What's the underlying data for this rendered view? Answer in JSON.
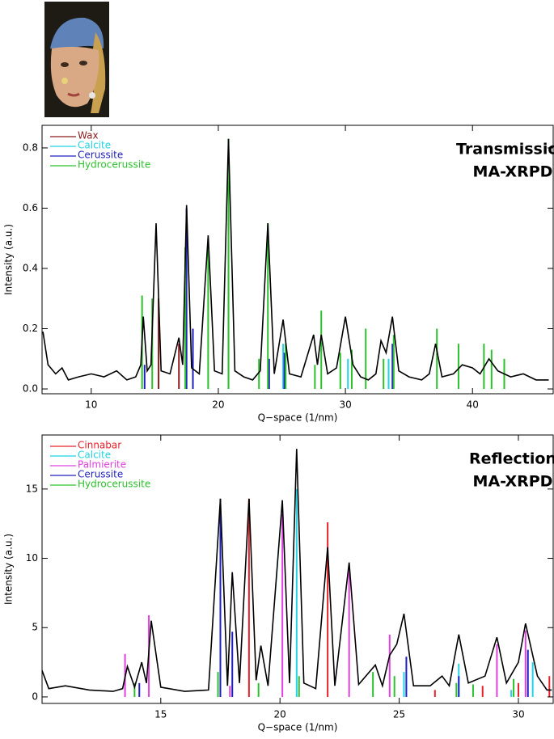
{
  "chart_data": [
    {
      "type": "line",
      "xlabel": "Q−space (1/nm)",
      "ylabel": "Intensity (a.u.)",
      "annotation": [
        "Transmission",
        "MA-XRPD"
      ],
      "xlim": [
        6.13,
        46.35
      ],
      "ylim": [
        -0.016,
        0.875
      ],
      "xticks": [
        10,
        20,
        30,
        40
      ],
      "yticks": [
        {
          "value": 0,
          "label": "0.0"
        },
        0.2,
        0.4,
        0.6,
        0.8
      ],
      "profile": {
        "color": "#000000",
        "x": [
          6.2,
          6.6,
          7.2,
          7.7,
          8.2,
          9,
          10,
          11,
          12,
          12.8,
          13.5,
          13.9,
          14.1,
          14.4,
          14.7,
          15.1,
          15.5,
          16.2,
          16.9,
          17.2,
          17.5,
          17.9,
          18.5,
          19.2,
          19.7,
          20.3,
          20.8,
          21.3,
          22,
          22.7,
          23.3,
          23.9,
          24.4,
          25.1,
          25.6,
          26.5,
          27.5,
          27.8,
          28.1,
          28.6,
          29.3,
          30.0,
          30.6,
          31.2,
          31.8,
          32.4,
          32.8,
          33.2,
          33.7,
          34.2,
          35,
          36,
          36.6,
          37.1,
          37.6,
          38.5,
          39.2,
          40,
          40.6,
          41.3,
          42,
          43,
          44,
          45,
          46
        ],
        "values": [
          0.19,
          0.08,
          0.05,
          0.07,
          0.03,
          0.04,
          0.05,
          0.04,
          0.06,
          0.03,
          0.04,
          0.08,
          0.24,
          0.06,
          0.08,
          0.55,
          0.06,
          0.05,
          0.17,
          0.08,
          0.61,
          0.07,
          0.05,
          0.51,
          0.06,
          0.05,
          0.83,
          0.06,
          0.04,
          0.03,
          0.06,
          0.55,
          0.05,
          0.23,
          0.05,
          0.04,
          0.18,
          0.08,
          0.18,
          0.05,
          0.07,
          0.24,
          0.08,
          0.04,
          0.03,
          0.05,
          0.16,
          0.12,
          0.24,
          0.06,
          0.04,
          0.03,
          0.05,
          0.15,
          0.04,
          0.05,
          0.08,
          0.07,
          0.05,
          0.1,
          0.06,
          0.04,
          0.05,
          0.03,
          0.03
        ]
      },
      "series": [
        {
          "name": "Wax",
          "color": "#8b1a1a",
          "x": [
            15.3,
            16.9
          ],
          "values": [
            0.3,
            0.15
          ]
        },
        {
          "name": "Calcite",
          "color": "#22d3e6",
          "x": [
            20.8,
            25.1,
            30.2,
            33.4
          ],
          "values": [
            0.83,
            0.15,
            0.1,
            0.1
          ]
        },
        {
          "name": "Cerussite",
          "color": "#1f1fbf",
          "x": [
            14.2,
            17.5,
            18.0,
            20.8,
            24.0,
            25.2,
            33.7
          ],
          "values": [
            0.08,
            0.6,
            0.2,
            0.8,
            0.1,
            0.12,
            0.15
          ]
        },
        {
          "name": "Hydrocerussite",
          "color": "#2cc12c",
          "x": [
            14.0,
            14.8,
            17.4,
            19.2,
            20.8,
            23.2,
            23.9,
            25.3,
            27.6,
            28.1,
            29.6,
            30.5,
            31.6,
            33.0,
            33.8,
            37.2,
            38.9,
            40.9,
            41.5,
            42.5
          ],
          "values": [
            0.31,
            0.3,
            0.47,
            0.5,
            0.83,
            0.1,
            0.55,
            0.15,
            0.08,
            0.26,
            0.12,
            0.13,
            0.2,
            0.1,
            0.18,
            0.2,
            0.15,
            0.15,
            0.13,
            0.1
          ]
        }
      ]
    },
    {
      "type": "line",
      "xlabel": "Q−space (1/nm)",
      "ylabel": "Intensity (a.u.)",
      "annotation": [
        "Reflection",
        "MA-XRPD"
      ],
      "xlim": [
        10.02,
        31.46
      ],
      "ylim": [
        -0.47,
        18.9
      ],
      "xticks": [
        15,
        20,
        25,
        30
      ],
      "yticks": [
        0,
        5,
        10,
        15
      ],
      "profile": {
        "color": "#000000",
        "x": [
          10.0,
          10.3,
          11,
          12,
          13,
          13.4,
          13.6,
          13.9,
          14.2,
          14.4,
          14.6,
          15,
          16,
          17,
          17.5,
          17.8,
          18.0,
          18.3,
          18.7,
          19.0,
          19.2,
          19.5,
          20.1,
          20.4,
          20.7,
          21,
          21.5,
          22.0,
          22.3,
          22.9,
          23.3,
          24,
          24.3,
          24.6,
          24.9,
          25.2,
          25.6,
          26.3,
          26.8,
          27.1,
          27.5,
          27.9,
          28.6,
          29.1,
          29.5,
          30.0,
          30.3,
          30.8,
          31.2,
          31.4
        ],
        "values": [
          2.0,
          0.6,
          0.8,
          0.5,
          0.4,
          0.6,
          2.2,
          0.7,
          2.5,
          1.0,
          5.5,
          0.7,
          0.4,
          0.5,
          14.3,
          0.8,
          9.0,
          1.0,
          14.3,
          1.2,
          3.7,
          0.8,
          14.2,
          1.0,
          17.9,
          1.0,
          0.6,
          10.8,
          0.8,
          9.7,
          0.9,
          2.3,
          0.8,
          3.0,
          3.8,
          6.0,
          0.8,
          0.8,
          1.5,
          0.8,
          4.5,
          1.0,
          1.5,
          4.3,
          1.0,
          2.5,
          5.3,
          1.5,
          0.5,
          0.5
        ]
      },
      "series": [
        {
          "name": "Cinnabar",
          "color": "#e8202a",
          "x": [
            18.7,
            22.0,
            26.5,
            28.5,
            30.0,
            31.3
          ],
          "values": [
            14.3,
            12.6,
            0.5,
            0.8,
            1.0,
            1.5
          ]
        },
        {
          "name": "Calcite",
          "color": "#22d3e6",
          "x": [
            20.7,
            25.2,
            27.5,
            29.7,
            30.6
          ],
          "values": [
            15.0,
            1.8,
            2.4,
            0.5,
            2.5
          ]
        },
        {
          "name": "Palmierite",
          "color": "#e040e0",
          "x": [
            13.5,
            14.5,
            17.9,
            20.1,
            22.9,
            24.6,
            29.1,
            30.3
          ],
          "values": [
            3.1,
            5.9,
            0.8,
            13.2,
            9.5,
            4.5,
            3.8,
            4.8
          ]
        },
        {
          "name": "Cerussite",
          "color": "#1f1fbf",
          "x": [
            14.1,
            17.5,
            18.0,
            25.3,
            27.5,
            30.4
          ],
          "values": [
            1.0,
            14.3,
            4.7,
            2.9,
            1.5,
            3.4
          ]
        },
        {
          "name": "Hydrocerussite",
          "color": "#2cc12c",
          "x": [
            13.9,
            17.4,
            19.1,
            20.8,
            23.9,
            24.8,
            27.4,
            28.1,
            29.8
          ],
          "values": [
            1.0,
            1.8,
            1.0,
            1.5,
            1.8,
            1.5,
            1.0,
            0.9,
            1.3
          ]
        }
      ]
    }
  ]
}
